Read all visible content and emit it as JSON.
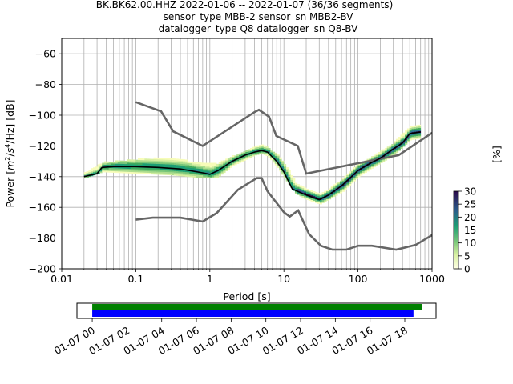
{
  "title_lines": [
    "BK.BK62.00.HHZ   2022-01-06 -- 2022-01-07  (36/36 segments)",
    "sensor_type MBB-2 sensor_sn MBB2-BV",
    "datalogger_type Q8 datalogger_sn Q8-BV"
  ],
  "colors": {
    "noise_model": "#666666",
    "mean_line": "#000000",
    "coverage_green": "#008000",
    "coverage_blue": "#0000ff"
  },
  "chart_data": [
    {
      "type": "heatmap",
      "description_kind": "probabilistic power spectral density",
      "xlabel": "Period [s]",
      "ylabel": "Power [m²/s⁴/Hz] [dB]",
      "ylabel_parts": {
        "pre": "Power [",
        "base1": "m",
        "sup1": "2",
        "mid": "/",
        "base2": "s",
        "sup2": "4",
        "post": "/Hz] [dB]"
      },
      "x_scale": "log",
      "xlim": [
        0.01,
        1000
      ],
      "ylim": [
        -200,
        -50
      ],
      "x_ticks": [
        0.01,
        0.1,
        1,
        10,
        100,
        1000
      ],
      "x_tick_labels": [
        "0.01",
        "0.1",
        "1",
        "10",
        "100",
        "1000"
      ],
      "y_ticks": [
        -200,
        -180,
        -160,
        -140,
        -120,
        -100,
        -80,
        -60
      ],
      "y_tick_labels": [
        "−200",
        "−180",
        "−160",
        "−140",
        "−120",
        "−100",
        "−80",
        "−60"
      ],
      "grid": true,
      "colorbar": {
        "label": "[%]",
        "range": [
          0,
          30
        ],
        "ticks": [
          0,
          5,
          10,
          15,
          20,
          25,
          30
        ],
        "tick_labels": [
          "0",
          "5",
          "10",
          "15",
          "20",
          "25",
          "30"
        ]
      },
      "series": [
        {
          "role": "high_noise_model",
          "points": [
            [
              0.1,
              -91.5
            ],
            [
              0.22,
              -97.5
            ],
            [
              0.32,
              -110.5
            ],
            [
              0.8,
              -120
            ],
            [
              4.0,
              -98
            ],
            [
              4.6,
              -96.5
            ],
            [
              6.3,
              -101
            ],
            [
              7.9,
              -113.5
            ],
            [
              15.4,
              -120
            ],
            [
              20,
              -138
            ],
            [
              354.8,
              -126
            ],
            [
              1000,
              -111.5
            ]
          ]
        },
        {
          "role": "low_noise_model",
          "points": [
            [
              0.1,
              -168
            ],
            [
              0.17,
              -166.7
            ],
            [
              0.4,
              -166.7
            ],
            [
              0.8,
              -169.2
            ],
            [
              1.24,
              -163.7
            ],
            [
              2.4,
              -148.5
            ],
            [
              4.3,
              -141
            ],
            [
              5.0,
              -141
            ],
            [
              6.0,
              -149.5
            ],
            [
              10,
              -163.2
            ],
            [
              12,
              -166
            ],
            [
              15.6,
              -162
            ],
            [
              21.9,
              -177.5
            ],
            [
              31.6,
              -185
            ],
            [
              45,
              -187.5
            ],
            [
              70,
              -187.5
            ],
            [
              101,
              -185
            ],
            [
              154,
              -185
            ],
            [
              328,
              -187.5
            ],
            [
              600,
              -184.5
            ],
            [
              1000,
              -178
            ]
          ]
        },
        {
          "role": "mean_psd",
          "points": [
            [
              0.02,
              -140
            ],
            [
              0.03,
              -138
            ],
            [
              0.035,
              -134
            ],
            [
              0.05,
              -133.5
            ],
            [
              0.1,
              -133.5
            ],
            [
              0.2,
              -134
            ],
            [
              0.4,
              -135
            ],
            [
              0.8,
              -137.5
            ],
            [
              1.0,
              -138.5
            ],
            [
              1.3,
              -136
            ],
            [
              2.0,
              -130
            ],
            [
              3.0,
              -126
            ],
            [
              4.0,
              -124
            ],
            [
              5.0,
              -123
            ],
            [
              6.0,
              -124
            ],
            [
              8.0,
              -130
            ],
            [
              10,
              -137
            ],
            [
              13,
              -148
            ],
            [
              20,
              -152
            ],
            [
              30,
              -155
            ],
            [
              40,
              -152
            ],
            [
              60,
              -146
            ],
            [
              100,
              -136
            ],
            [
              150,
              -131
            ],
            [
              200,
              -128
            ],
            [
              300,
              -122
            ],
            [
              400,
              -118
            ],
            [
              500,
              -112
            ],
            [
              700,
              -111
            ]
          ]
        },
        {
          "role": "psd_density_band",
          "points_upper": [
            [
              0.02,
              -138
            ],
            [
              0.035,
              -131
            ],
            [
              0.1,
              -129
            ],
            [
              0.3,
              -128
            ],
            [
              0.8,
              -132
            ],
            [
              1.2,
              -132
            ],
            [
              2.0,
              -127
            ],
            [
              4.0,
              -121
            ],
            [
              5.0,
              -120
            ],
            [
              6.0,
              -122
            ],
            [
              8.0,
              -126
            ],
            [
              10,
              -132
            ],
            [
              14,
              -144
            ],
            [
              20,
              -149
            ],
            [
              30,
              -152
            ],
            [
              60,
              -142
            ],
            [
              100,
              -132
            ],
            [
              200,
              -124
            ],
            [
              300,
              -118
            ],
            [
              500,
              -108
            ],
            [
              700,
              -107
            ]
          ],
          "points_lower": [
            [
              0.02,
              -141
            ],
            [
              0.035,
              -137
            ],
            [
              0.1,
              -138
            ],
            [
              0.3,
              -139
            ],
            [
              0.8,
              -141
            ],
            [
              1.2,
              -141
            ],
            [
              2.0,
              -133
            ],
            [
              4.0,
              -126
            ],
            [
              5.0,
              -125
            ],
            [
              6.0,
              -127
            ],
            [
              8.0,
              -134
            ],
            [
              10,
              -141
            ],
            [
              14,
              -151
            ],
            [
              20,
              -155
            ],
            [
              30,
              -158
            ],
            [
              60,
              -150
            ],
            [
              100,
              -140
            ],
            [
              200,
              -131
            ],
            [
              300,
              -126
            ],
            [
              500,
              -116
            ],
            [
              700,
              -115
            ]
          ]
        }
      ]
    },
    {
      "type": "bar",
      "description_kind": "data coverage timeline",
      "x_tick_labels": [
        "01-07 00",
        "01-07 02",
        "01-07 04",
        "01-07 06",
        "01-07 08",
        "01-07 10",
        "01-07 12",
        "01-07 14",
        "01-07 16",
        "01-07 18"
      ],
      "x_tick_hours": [
        0,
        2,
        4,
        6,
        8,
        10,
        12,
        14,
        16,
        18
      ],
      "xlim_hours": [
        -0.88,
        19.8
      ],
      "series": [
        {
          "role": "upper",
          "color": "#008000",
          "start_hour": 0,
          "end_hour": 19.0
        },
        {
          "role": "lower",
          "color": "#0000ff",
          "start_hour": 0,
          "end_hour": 18.5
        }
      ]
    }
  ]
}
